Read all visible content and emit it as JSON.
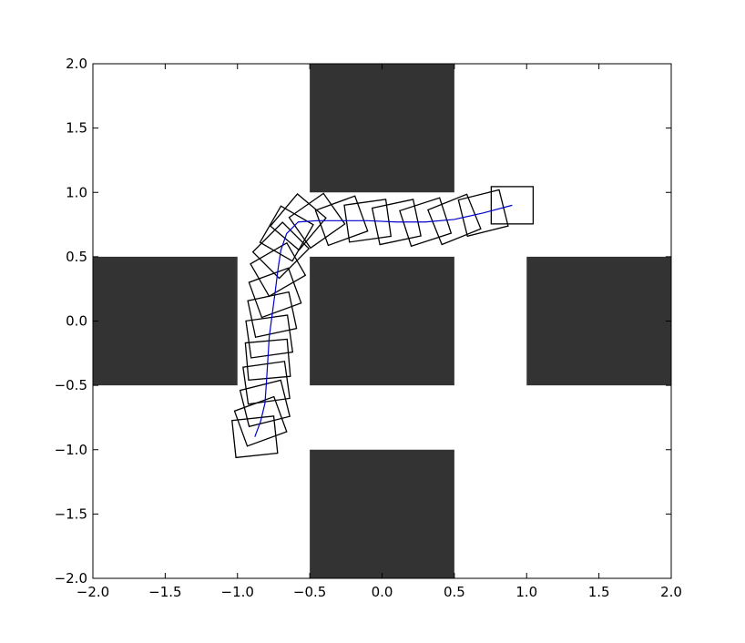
{
  "chart_data": {
    "type": "scatter",
    "title": "",
    "xlabel": "",
    "ylabel": "",
    "xlim": [
      -2.0,
      2.0
    ],
    "ylim": [
      -2.0,
      2.0
    ],
    "grid": false,
    "x_tick_labels": [
      "−2.0",
      "−1.5",
      "−1.0",
      "−0.5",
      "0.0",
      "0.5",
      "1.0",
      "1.5",
      "2.0"
    ],
    "y_tick_labels": [
      "−2.0",
      "−1.5",
      "−1.0",
      "−0.5",
      "0.0",
      "0.5",
      "1.0",
      "1.5",
      "2.0"
    ],
    "x_ticks": [
      -2.0,
      -1.5,
      -1.0,
      -0.5,
      0.0,
      0.5,
      1.0,
      1.5,
      2.0
    ],
    "y_ticks": [
      -2.0,
      -1.5,
      -1.0,
      -0.5,
      0.0,
      0.5,
      1.0,
      1.5,
      2.0
    ],
    "obstacle_color": "#333333",
    "path_color": "#0000cc",
    "square_color": "#000000",
    "obstacles": [
      {
        "name": "top",
        "x0": -0.5,
        "x1": 0.5,
        "y0": 1.0,
        "y1": 2.0
      },
      {
        "name": "center",
        "x0": -0.5,
        "x1": 0.5,
        "y0": -0.5,
        "y1": 0.5
      },
      {
        "name": "bottom",
        "x0": -0.5,
        "x1": 0.5,
        "y0": -2.0,
        "y1": -1.0
      },
      {
        "name": "left",
        "x0": -2.0,
        "x1": -1.0,
        "y0": -0.5,
        "y1": 0.5
      },
      {
        "name": "right",
        "x0": 1.0,
        "x1": 2.0,
        "y0": -0.5,
        "y1": 0.5
      }
    ],
    "square_size": 0.29,
    "path": [
      {
        "x": 0.9,
        "y": 0.9,
        "angle": 0
      },
      {
        "x": 0.7,
        "y": 0.84,
        "angle": 14
      },
      {
        "x": 0.5,
        "y": 0.79,
        "angle": 22
      },
      {
        "x": 0.3,
        "y": 0.77,
        "angle": 18
      },
      {
        "x": 0.1,
        "y": 0.77,
        "angle": 12
      },
      {
        "x": -0.1,
        "y": 0.78,
        "angle": 8
      },
      {
        "x": -0.28,
        "y": 0.78,
        "angle": 20
      },
      {
        "x": -0.45,
        "y": 0.78,
        "angle": 35
      },
      {
        "x": -0.58,
        "y": 0.77,
        "angle": 50
      },
      {
        "x": -0.66,
        "y": 0.68,
        "angle": 60
      },
      {
        "x": -0.7,
        "y": 0.55,
        "angle": 45
      },
      {
        "x": -0.72,
        "y": 0.4,
        "angle": 30
      },
      {
        "x": -0.74,
        "y": 0.22,
        "angle": 20
      },
      {
        "x": -0.76,
        "y": 0.05,
        "angle": 12
      },
      {
        "x": -0.78,
        "y": -0.12,
        "angle": 8
      },
      {
        "x": -0.79,
        "y": -0.3,
        "angle": 5
      },
      {
        "x": -0.8,
        "y": -0.48,
        "angle": 8
      },
      {
        "x": -0.81,
        "y": -0.64,
        "angle": 14
      },
      {
        "x": -0.84,
        "y": -0.78,
        "angle": 20
      },
      {
        "x": -0.88,
        "y": -0.9,
        "angle": 6
      }
    ]
  }
}
